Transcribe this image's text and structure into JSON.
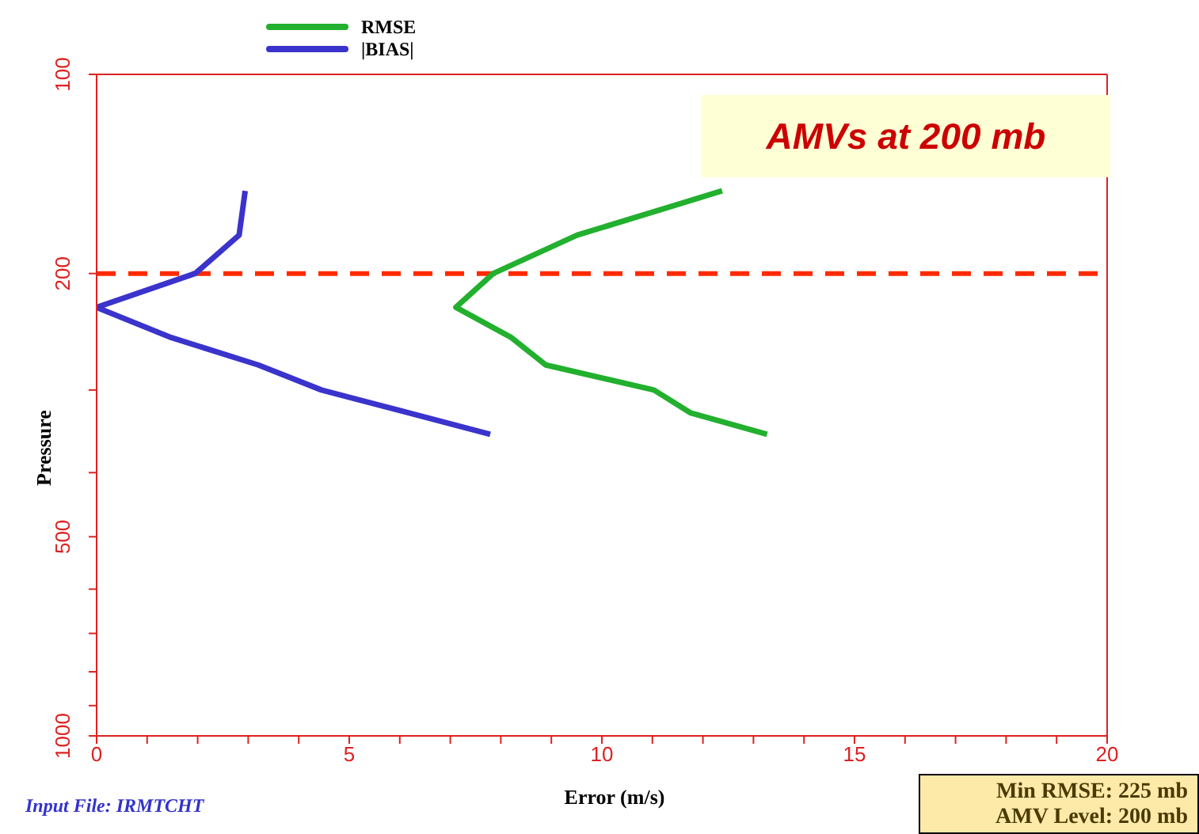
{
  "chart_data": {
    "type": "line",
    "xlabel": "Error (m/s)",
    "ylabel": "Pressure",
    "series": [
      {
        "name": "RMSE",
        "color": "#22b02e",
        "x": [
          12.38,
          9.51,
          7.85,
          7.11,
          8.21,
          8.89,
          11.03,
          11.76,
          13.27
        ],
        "values": [
          150,
          175,
          200,
          225,
          250,
          275,
          300,
          325,
          350
        ]
      },
      {
        "name": "|BIAS|",
        "color": "#3a33cc",
        "x": [
          2.94,
          2.82,
          1.95,
          0,
          1.48,
          3.2,
          4.45,
          7.79
        ],
        "values": [
          150,
          175,
          200,
          225,
          250,
          275,
          300,
          350
        ]
      }
    ],
    "xlim": [
      0,
      20
    ],
    "xticks": [
      0,
      {
        "value": 1,
        "label": null
      },
      {
        "value": 2,
        "label": null
      },
      {
        "value": 3,
        "label": null
      },
      {
        "value": 4,
        "label": null
      },
      5,
      {
        "value": 6,
        "label": null
      },
      {
        "value": 7,
        "label": null
      },
      {
        "value": 8,
        "label": null
      },
      {
        "value": 9,
        "label": null
      },
      10,
      {
        "value": 11,
        "label": null
      },
      {
        "value": 12,
        "label": null
      },
      {
        "value": 13,
        "label": null
      },
      {
        "value": 14,
        "label": null
      },
      15,
      {
        "value": 16,
        "label": null
      },
      {
        "value": 17,
        "label": null
      },
      {
        "value": 18,
        "label": null
      },
      {
        "value": 19,
        "label": null
      },
      20
    ],
    "ylim": [
      1000,
      100
    ],
    "yticks": [
      100,
      200,
      {
        "value": 300,
        "label": null
      },
      {
        "value": 400,
        "label": null
      },
      500,
      {
        "value": 600,
        "label": null
      },
      {
        "value": 700,
        "label": null
      },
      {
        "value": 800,
        "label": null
      },
      {
        "value": 900,
        "label": null
      },
      1000
    ],
    "log": "y",
    "grid": false,
    "legend": "top",
    "marker": "none",
    "line_style": "solid",
    "ref_lines": [
      {
        "axis": "y",
        "value": 200,
        "color": "#ff2a00",
        "line_style": "dashed"
      }
    ],
    "annotations": [
      "AMVs at 200 mb",
      "Input File: IRMTCHT",
      "Min RMSE: 225 mb",
      "AMV Level: 200 mb"
    ]
  }
}
